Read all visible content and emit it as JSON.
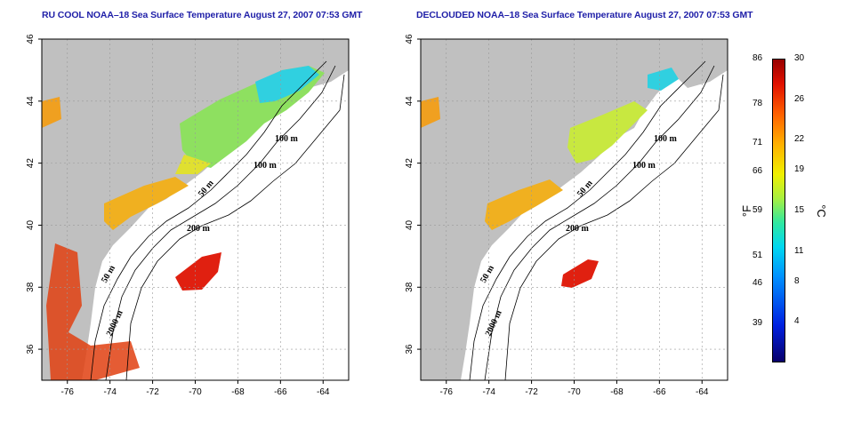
{
  "titles": {
    "left": "RU COOL NOAA–18 Sea Surface Temperature August 27, 2007 07:53 GMT",
    "right": "DECLOUDED NOAA–18 Sea Surface Temperature August 27, 2007 07:53 GMT"
  },
  "axes": {
    "lon_ticks": [
      "-76",
      "-74",
      "-72",
      "-70",
      "-68",
      "-66",
      "-64"
    ],
    "lat_ticks": [
      "36",
      "38",
      "40",
      "42",
      "44",
      "46"
    ],
    "lon_range": [
      -77.2,
      -62.8
    ],
    "lat_range": [
      35,
      46
    ],
    "grid": "dotted"
  },
  "contour_labels": {
    "left": [
      "100 m",
      "100 m",
      "50 m",
      "200 m",
      "50 m",
      "2000 m"
    ],
    "right": [
      "100 m",
      "100 m",
      "50 m",
      "200 m",
      "50 m",
      "2000 m"
    ]
  },
  "colorbar": {
    "fahrenheit": [
      "86",
      "78",
      "71",
      "66",
      "59",
      "51",
      "46",
      "39"
    ],
    "celsius": [
      "30",
      "26",
      "22",
      "19",
      "15",
      "11",
      "8",
      "4"
    ],
    "fahrenheit_unit": "°F",
    "celsius_unit": "°C",
    "colors": [
      "#08006b",
      "#0020e0",
      "#0090ff",
      "#00d8f0",
      "#30e8a0",
      "#a8f040",
      "#f0f000",
      "#ffb000",
      "#ff6000",
      "#e01000",
      "#980000"
    ]
  },
  "colors": {
    "land": "#c0c0c0",
    "title": "#1f1fa8"
  }
}
